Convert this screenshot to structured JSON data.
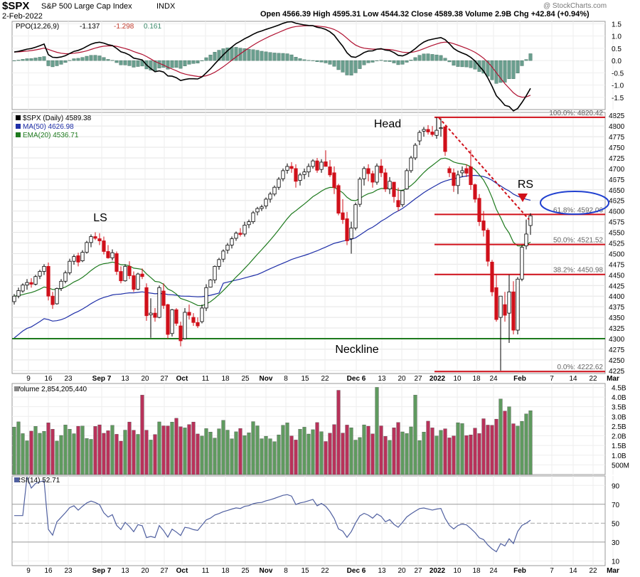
{
  "header": {
    "symbol": "$SPX",
    "name": "S&P 500 Large Cap Index",
    "exchange": "INDX",
    "date": "2-Feb-2022",
    "ohlc_text": "Open 4566.39  High 4595.31  Low 4544.32  Close 4589.38  Volume 2.9B  Chg +42.84 (+0.94%)",
    "watermark": "@ StockCharts.com"
  },
  "panels": {
    "ppo": {
      "label": "PPO(12,26,9)",
      "values": [
        "-1.137",
        "-1.298",
        "0.161"
      ],
      "colors": [
        "#000000",
        "#c0392b",
        "#3a8a6a"
      ],
      "ylim": [
        -2.0,
        1.6
      ],
      "ticks": [
        "1.5",
        "1.0",
        "0.5",
        "0.0",
        "-0.5",
        "-1.0",
        "-1.5"
      ]
    },
    "price": {
      "legend": [
        "$SPX (Daily) 4589.38",
        "MA(50) 4626.98",
        "EMA(20) 4536.71"
      ],
      "legend_colors": [
        "#000000",
        "#1f2fa8",
        "#1e7a1e"
      ],
      "ylim": [
        4218,
        4832
      ],
      "ticks": [
        "4825",
        "4800",
        "4775",
        "4750",
        "4725",
        "4700",
        "4675",
        "4650",
        "4625",
        "4600",
        "4575",
        "4550",
        "4525",
        "4500",
        "4475",
        "4450",
        "4425",
        "4400",
        "4375",
        "4350",
        "4325",
        "4300",
        "4275",
        "4250",
        "4225"
      ]
    },
    "volume": {
      "label": "Volume 2,854,205,440",
      "ticks": [
        "4.5B",
        "4.0B",
        "3.5B",
        "3.0B",
        "2.5B",
        "2.0B",
        "1.5B",
        "1.0B",
        "500M"
      ]
    },
    "rsi": {
      "label": "RSI(14) 52.71",
      "ylim": [
        5,
        100
      ],
      "ticks": [
        "90",
        "70",
        "50",
        "30",
        "10"
      ]
    }
  },
  "annotations": {
    "ls": "LS",
    "head": "Head",
    "rs": "RS",
    "neckline": "Neckline",
    "fib": [
      {
        "label": "100.0%: 4820.42",
        "level": 4820.42
      },
      {
        "label": "61.8%: 4592.06",
        "level": 4592.06
      },
      {
        "label": "50.0%: 4521.52",
        "level": 4521.52
      },
      {
        "label": "38.2%: 4450.98",
        "level": 4450.98
      },
      {
        "label": "0.0%: 4222.62",
        "level": 4222.62
      }
    ],
    "neckline_level": 4300
  },
  "x_axis": [
    "9",
    "16",
    "23",
    "Sep 7",
    "13",
    "20",
    "27",
    "Oct",
    "11",
    "18",
    "25",
    "Nov",
    "8",
    "15",
    "22",
    "Dec 6",
    "13",
    "20",
    "27",
    "2022",
    "10",
    "18",
    "24",
    "Feb",
    "7",
    "14",
    "22",
    "Mar"
  ],
  "colors": {
    "up": "#ffffff",
    "down": "#d0101a",
    "vol_up": "#5f9a5f",
    "vol_down": "#b8325a",
    "ma50": "#1f2fa8",
    "ema20": "#1e7a1e",
    "ppo_line": "#000000",
    "ppo_signal": "#b01030",
    "hist": "#6a9e8e",
    "fib_line": "#d0101a",
    "neckline": "#1e7a1e",
    "rsi_line": "#5060a0",
    "highlight": "#2040d0"
  },
  "chart_data": {
    "type": "candlestick",
    "title": "$SPX S&P 500 Large Cap Index INDX",
    "points_ohlc": [
      [
        4387,
        4405,
        4380,
        4400
      ],
      [
        4400,
        4420,
        4395,
        4413
      ],
      [
        4412,
        4430,
        4408,
        4426
      ],
      [
        4426,
        4440,
        4415,
        4432
      ],
      [
        4432,
        4442,
        4420,
        4428
      ],
      [
        4428,
        4450,
        4425,
        4446
      ],
      [
        4447,
        4462,
        4440,
        4458
      ],
      [
        4458,
        4475,
        4450,
        4470
      ],
      [
        4470,
        4479,
        4390,
        4400
      ],
      [
        4400,
        4410,
        4370,
        4380
      ],
      [
        4382,
        4420,
        4380,
        4418
      ],
      [
        4418,
        4440,
        4412,
        4435
      ],
      [
        4435,
        4460,
        4430,
        4455
      ],
      [
        4455,
        4488,
        4450,
        4482
      ],
      [
        4482,
        4498,
        4474,
        4493
      ],
      [
        4495,
        4502,
        4470,
        4480
      ],
      [
        4483,
        4508,
        4480,
        4503
      ],
      [
        4503,
        4530,
        4500,
        4526
      ],
      [
        4526,
        4545,
        4515,
        4540
      ],
      [
        4540,
        4550,
        4532,
        4536
      ],
      [
        4535,
        4548,
        4520,
        4530
      ],
      [
        4530,
        4540,
        4498,
        4505
      ],
      [
        4505,
        4520,
        4488,
        4490
      ],
      [
        4490,
        4510,
        4484,
        4502
      ],
      [
        4500,
        4505,
        4450,
        4458
      ],
      [
        4458,
        4470,
        4430,
        4436
      ],
      [
        4436,
        4475,
        4434,
        4470
      ],
      [
        4470,
        4482,
        4440,
        4448
      ],
      [
        4448,
        4458,
        4410,
        4416
      ],
      [
        4416,
        4455,
        4414,
        4452
      ],
      [
        4452,
        4465,
        4440,
        4446
      ],
      [
        4420,
        4430,
        4342,
        4354
      ],
      [
        4356,
        4395,
        4302,
        4360
      ],
      [
        4360,
        4372,
        4340,
        4350
      ],
      [
        4350,
        4425,
        4348,
        4420
      ],
      [
        4412,
        4430,
        4370,
        4378
      ],
      [
        4380,
        4382,
        4300,
        4310
      ],
      [
        4312,
        4370,
        4305,
        4368
      ],
      [
        4368,
        4372,
        4330,
        4336
      ],
      [
        4330,
        4340,
        4282,
        4295
      ],
      [
        4300,
        4372,
        4298,
        4362
      ],
      [
        4362,
        4380,
        4345,
        4355
      ],
      [
        4350,
        4360,
        4330,
        4338
      ],
      [
        4338,
        4350,
        4325,
        4330
      ],
      [
        4340,
        4380,
        4336,
        4372
      ],
      [
        4372,
        4428,
        4365,
        4420
      ],
      [
        4421,
        4440,
        4420,
        4438
      ],
      [
        4438,
        4472,
        4430,
        4470
      ],
      [
        4470,
        4490,
        4462,
        4486
      ],
      [
        4487,
        4510,
        4480,
        4506
      ],
      [
        4508,
        4525,
        4500,
        4520
      ],
      [
        4520,
        4540,
        4512,
        4535
      ],
      [
        4536,
        4552,
        4530,
        4548
      ],
      [
        4548,
        4560,
        4540,
        4545
      ],
      [
        4546,
        4575,
        4540,
        4567
      ],
      [
        4568,
        4580,
        4560,
        4575
      ],
      [
        4575,
        4600,
        4570,
        4596
      ],
      [
        4598,
        4610,
        4590,
        4606
      ],
      [
        4606,
        4615,
        4600,
        4610
      ],
      [
        4612,
        4632,
        4605,
        4628
      ],
      [
        4628,
        4645,
        4620,
        4640
      ],
      [
        4640,
        4660,
        4635,
        4656
      ],
      [
        4656,
        4680,
        4650,
        4675
      ],
      [
        4676,
        4700,
        4670,
        4695
      ],
      [
        4696,
        4712,
        4688,
        4705
      ],
      [
        4705,
        4715,
        4690,
        4700
      ],
      [
        4700,
        4710,
        4655,
        4670
      ],
      [
        4672,
        4690,
        4660,
        4685
      ],
      [
        4686,
        4700,
        4675,
        4692
      ],
      [
        4692,
        4712,
        4680,
        4705
      ],
      [
        4705,
        4722,
        4700,
        4718
      ],
      [
        4718,
        4725,
        4690,
        4696
      ],
      [
        4698,
        4722,
        4690,
        4715
      ],
      [
        4716,
        4743,
        4705,
        4705
      ],
      [
        4704,
        4720,
        4680,
        4685
      ],
      [
        4690,
        4705,
        4640,
        4655
      ],
      [
        4660,
        4664,
        4590,
        4595
      ],
      [
        4596,
        4628,
        4570,
        4580
      ],
      [
        4582,
        4598,
        4520,
        4530
      ],
      [
        4535,
        4575,
        4500,
        4560
      ],
      [
        4560,
        4620,
        4555,
        4615
      ],
      [
        4616,
        4680,
        4610,
        4675
      ],
      [
        4676,
        4705,
        4660,
        4700
      ],
      [
        4700,
        4710,
        4670,
        4688
      ],
      [
        4688,
        4695,
        4655,
        4668
      ],
      [
        4668,
        4712,
        4662,
        4706
      ],
      [
        4706,
        4722,
        4680,
        4690
      ],
      [
        4690,
        4700,
        4645,
        4652
      ],
      [
        4652,
        4680,
        4640,
        4670
      ],
      [
        4668,
        4668,
        4620,
        4634
      ],
      [
        4625,
        4655,
        4600,
        4610
      ],
      [
        4615,
        4650,
        4610,
        4648
      ],
      [
        4652,
        4700,
        4650,
        4695
      ],
      [
        4695,
        4730,
        4690,
        4725
      ],
      [
        4725,
        4760,
        4720,
        4755
      ],
      [
        4765,
        4790,
        4755,
        4785
      ],
      [
        4788,
        4798,
        4775,
        4792
      ],
      [
        4792,
        4802,
        4780,
        4786
      ],
      [
        4786,
        4800,
        4775,
        4780
      ],
      [
        4778,
        4820,
        4770,
        4790
      ],
      [
        4794,
        4818,
        4775,
        4796
      ],
      [
        4798,
        4800,
        4730,
        4740
      ],
      [
        4700,
        4705,
        4680,
        4690
      ],
      [
        4690,
        4700,
        4645,
        4660
      ],
      [
        4660,
        4695,
        4640,
        4685
      ],
      [
        4690,
        4705,
        4680,
        4695
      ],
      [
        4700,
        4710,
        4680,
        4689
      ],
      [
        4704,
        4744,
        4650,
        4662
      ],
      [
        4662,
        4665,
        4620,
        4628
      ],
      [
        4630,
        4640,
        4565,
        4575
      ],
      [
        4577,
        4600,
        4540,
        4555
      ],
      [
        4555,
        4560,
        4470,
        4482
      ],
      [
        4480,
        4485,
        4400,
        4410
      ],
      [
        4420,
        4450,
        4340,
        4345
      ],
      [
        4350,
        4370,
        4225,
        4400
      ],
      [
        4380,
        4410,
        4340,
        4355
      ],
      [
        4360,
        4450,
        4290,
        4410
      ],
      [
        4410,
        4435,
        4310,
        4320
      ],
      [
        4320,
        4445,
        4310,
        4440
      ],
      [
        4440,
        4520,
        4435,
        4515
      ],
      [
        4518,
        4580,
        4510,
        4546
      ],
      [
        4566,
        4595,
        4544,
        4589
      ]
    ]
  }
}
